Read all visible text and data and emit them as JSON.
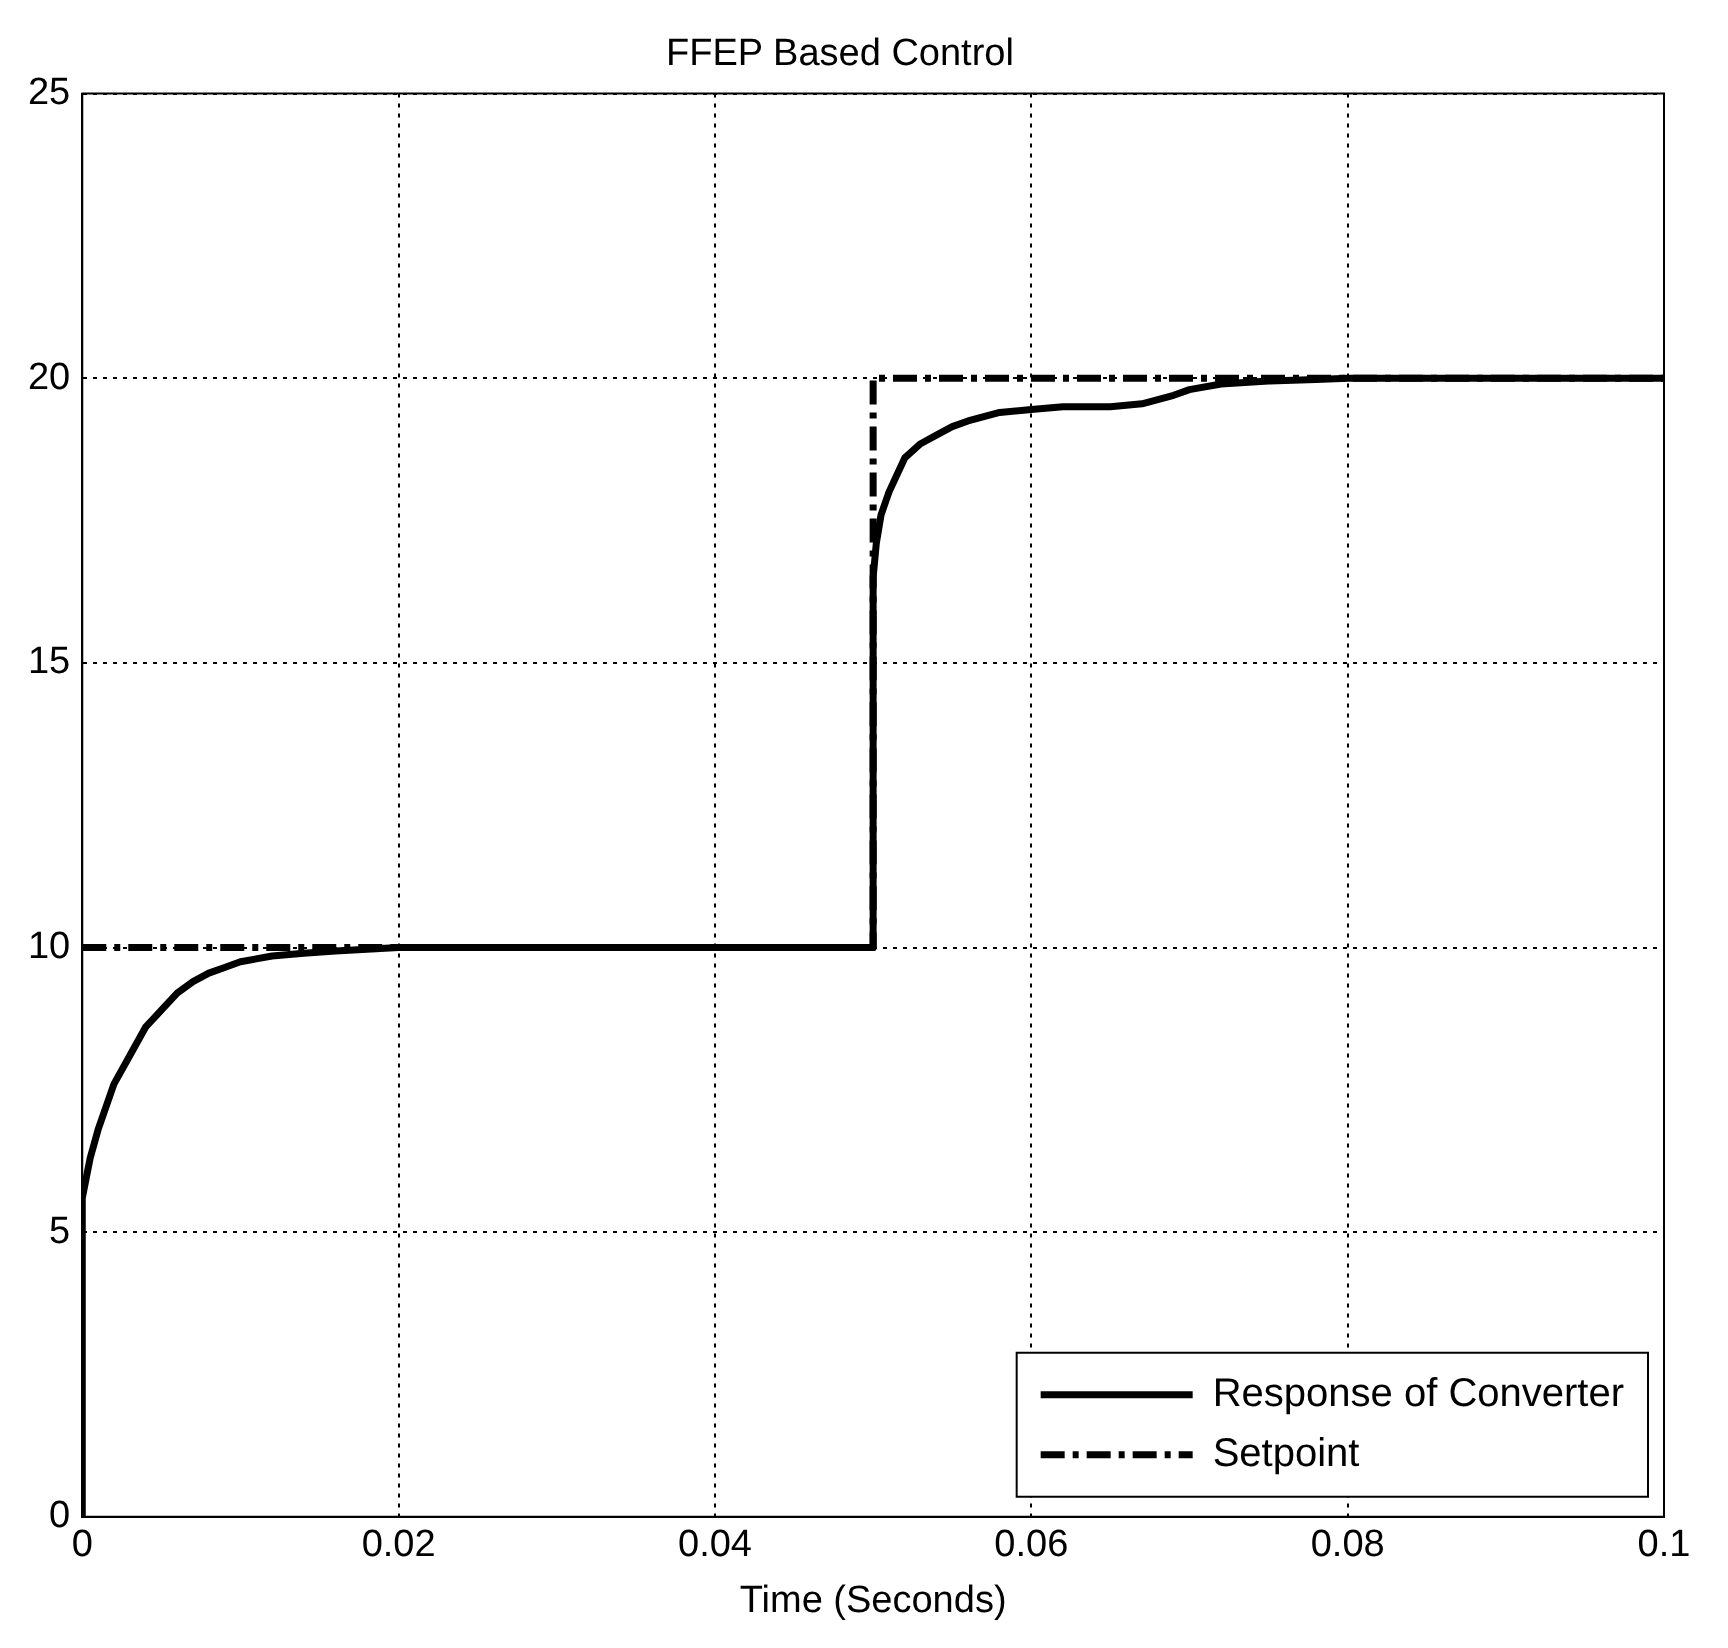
{
  "chart_data": {
    "type": "line",
    "title": "FFEP Based Control",
    "xlabel": "Time (Seconds)",
    "xlim": [
      0,
      0.1
    ],
    "xticks": [
      0,
      0.02,
      0.04,
      0.06,
      0.08,
      0.1
    ],
    "ylim": [
      0,
      25
    ],
    "yticks": [
      0,
      5,
      10,
      15,
      20,
      25
    ],
    "grid": true,
    "legend": "bottom right",
    "marker": "none",
    "series": [
      {
        "name": "Response of Converter",
        "color": "#000000",
        "line_style": "solid",
        "x": [
          0,
          0,
          0.0005,
          0.001,
          0.002,
          0.003,
          0.004,
          0.005,
          0.006,
          0.007,
          0.008,
          0.009,
          0.01,
          0.012,
          0.014,
          0.016,
          0.018,
          0.02,
          0.03,
          0.04,
          0.05,
          0.05,
          0.0502,
          0.0505,
          0.051,
          0.0515,
          0.052,
          0.053,
          0.054,
          0.055,
          0.056,
          0.058,
          0.06,
          0.062,
          0.065,
          0.067,
          0.069,
          0.07,
          0.072,
          0.075,
          0.078,
          0.08,
          0.09,
          0.1
        ],
        "values": [
          0,
          5.6,
          6.3,
          6.8,
          7.6,
          8.1,
          8.6,
          8.9,
          9.2,
          9.4,
          9.55,
          9.65,
          9.75,
          9.85,
          9.9,
          9.94,
          9.97,
          10,
          10,
          10,
          10,
          16.5,
          17.1,
          17.6,
          18,
          18.3,
          18.6,
          18.85,
          19.0,
          19.15,
          19.25,
          19.4,
          19.45,
          19.5,
          19.5,
          19.55,
          19.7,
          19.8,
          19.9,
          19.95,
          19.98,
          20,
          20,
          20
        ]
      },
      {
        "name": "Setpoint",
        "color": "#000000",
        "line_style": "dashdot",
        "x": [
          0,
          0.05,
          0.05,
          0.1
        ],
        "values": [
          10,
          10,
          20,
          20
        ]
      }
    ]
  }
}
